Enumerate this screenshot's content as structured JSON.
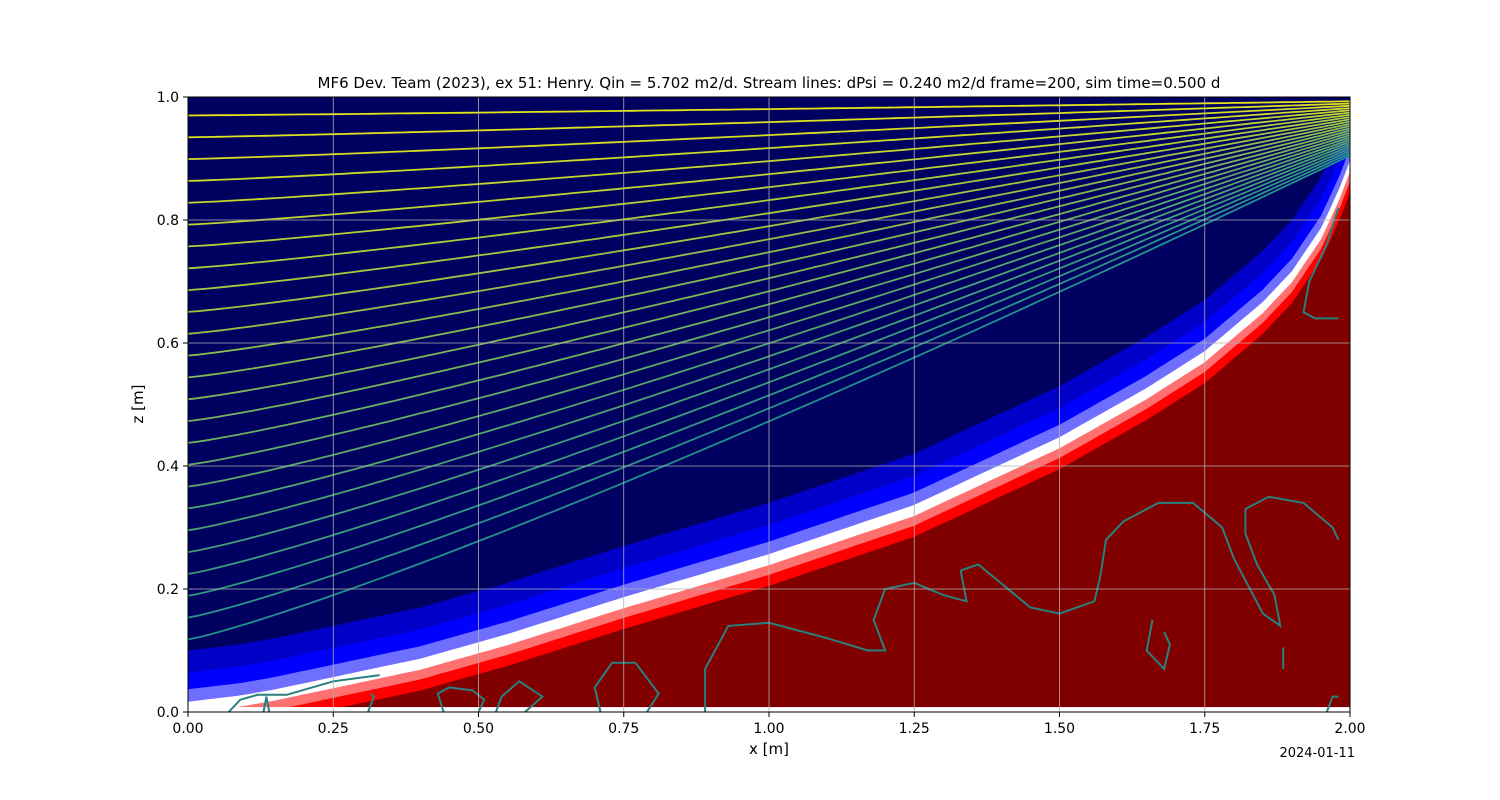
{
  "chart_data": {
    "type": "contour",
    "title": "MF6 Dev. Team (2023), ex 51: Henry. Qin = 5.702 m2/d. Stream lines: dPsi = 0.240 m2/d frame=200, sim time=0.500 d",
    "xlabel": "x [m]",
    "ylabel": "z [m]",
    "xlim": [
      0,
      2
    ],
    "ylim": [
      0,
      1
    ],
    "xticks": [
      "0.00",
      "0.25",
      "0.50",
      "0.75",
      "1.00",
      "1.25",
      "1.50",
      "1.75",
      "2.00"
    ],
    "yticks": [
      "0.0",
      "0.2",
      "0.4",
      "0.6",
      "0.8",
      "1.0"
    ],
    "grid": true,
    "date_label": "2024-01-11",
    "colors": {
      "fresh": "#000060",
      "mixing": "#0000ff",
      "mid": "#ffffff",
      "salt_edge": "#ff0000",
      "salt": "#800000",
      "stream_low": "#21918c",
      "stream_high": "#e5e419",
      "contour": "#2a7f7f"
    },
    "interface": {
      "x": [
        0.0,
        0.09,
        0.15,
        0.25,
        0.4,
        0.55,
        0.75,
        1.0,
        1.25,
        1.5,
        1.65,
        1.75,
        1.85,
        1.9,
        1.95,
        1.98,
        2.0
      ],
      "z": [
        0.01,
        0.02,
        0.03,
        0.05,
        0.08,
        0.12,
        0.18,
        0.25,
        0.33,
        0.44,
        0.52,
        0.58,
        0.66,
        0.71,
        0.78,
        0.84,
        0.89
      ],
      "mixing_width": 0.045
    },
    "stream_lines": {
      "count": 25,
      "dPsi": 0.24,
      "start_z_top": 0.97,
      "start_z_step": 0.0355,
      "end_z_top": 0.993,
      "end_z_bottom": 0.905
    },
    "salt_contours": [
      {
        "x": [
          0.07,
          0.09,
          0.12,
          0.17,
          0.25,
          0.33
        ],
        "z": [
          0.0,
          0.02,
          0.028,
          0.028,
          0.05,
          0.06
        ]
      },
      {
        "x": [
          0.13,
          0.135,
          0.14
        ],
        "z": [
          0.0,
          0.025,
          0.0
        ]
      },
      {
        "x": [
          0.31,
          0.32,
          0.315
        ],
        "z": [
          0.0,
          0.025,
          0.03
        ]
      },
      {
        "x": [
          0.44,
          0.43,
          0.45,
          0.49,
          0.51,
          0.5
        ],
        "z": [
          0.0,
          0.03,
          0.04,
          0.035,
          0.02,
          0.0
        ]
      },
      {
        "x": [
          0.53,
          0.54,
          0.57,
          0.61,
          0.58
        ],
        "z": [
          0.0,
          0.025,
          0.05,
          0.025,
          0.0
        ]
      },
      {
        "x": [
          0.71,
          0.7,
          0.73,
          0.77,
          0.81,
          0.79
        ],
        "z": [
          0.0,
          0.04,
          0.08,
          0.08,
          0.03,
          0.0
        ]
      },
      {
        "x": [
          0.89,
          0.89,
          0.93,
          1.0,
          1.1,
          1.17,
          1.2,
          1.18,
          1.2,
          1.25,
          1.3,
          1.34,
          1.33,
          1.36,
          1.45,
          1.5,
          1.56,
          1.57,
          1.58,
          1.61,
          1.67,
          1.73,
          1.78,
          1.8,
          1.85,
          1.88,
          1.87,
          1.84,
          1.82,
          1.82,
          1.86,
          1.92,
          1.97,
          1.98
        ],
        "z": [
          0.0,
          0.07,
          0.14,
          0.145,
          0.12,
          0.1,
          0.1,
          0.15,
          0.2,
          0.21,
          0.19,
          0.18,
          0.23,
          0.24,
          0.17,
          0.16,
          0.18,
          0.22,
          0.28,
          0.31,
          0.34,
          0.34,
          0.3,
          0.25,
          0.16,
          0.14,
          0.19,
          0.24,
          0.29,
          0.33,
          0.35,
          0.34,
          0.3,
          0.28
        ]
      },
      {
        "x": [
          1.66,
          1.65,
          1.68,
          1.69,
          1.68
        ],
        "z": [
          0.15,
          0.1,
          0.07,
          0.11,
          0.13
        ]
      },
      {
        "x": [
          1.885,
          1.885
        ],
        "z": [
          0.07,
          0.105
        ]
      },
      {
        "x": [
          1.96,
          1.97,
          1.98
        ],
        "z": [
          0.0,
          0.025,
          0.025
        ]
      },
      {
        "x": [
          1.98,
          1.94,
          1.92,
          1.93,
          1.96,
          1.98
        ],
        "z": [
          0.64,
          0.64,
          0.65,
          0.7,
          0.76,
          0.82
        ]
      }
    ]
  }
}
